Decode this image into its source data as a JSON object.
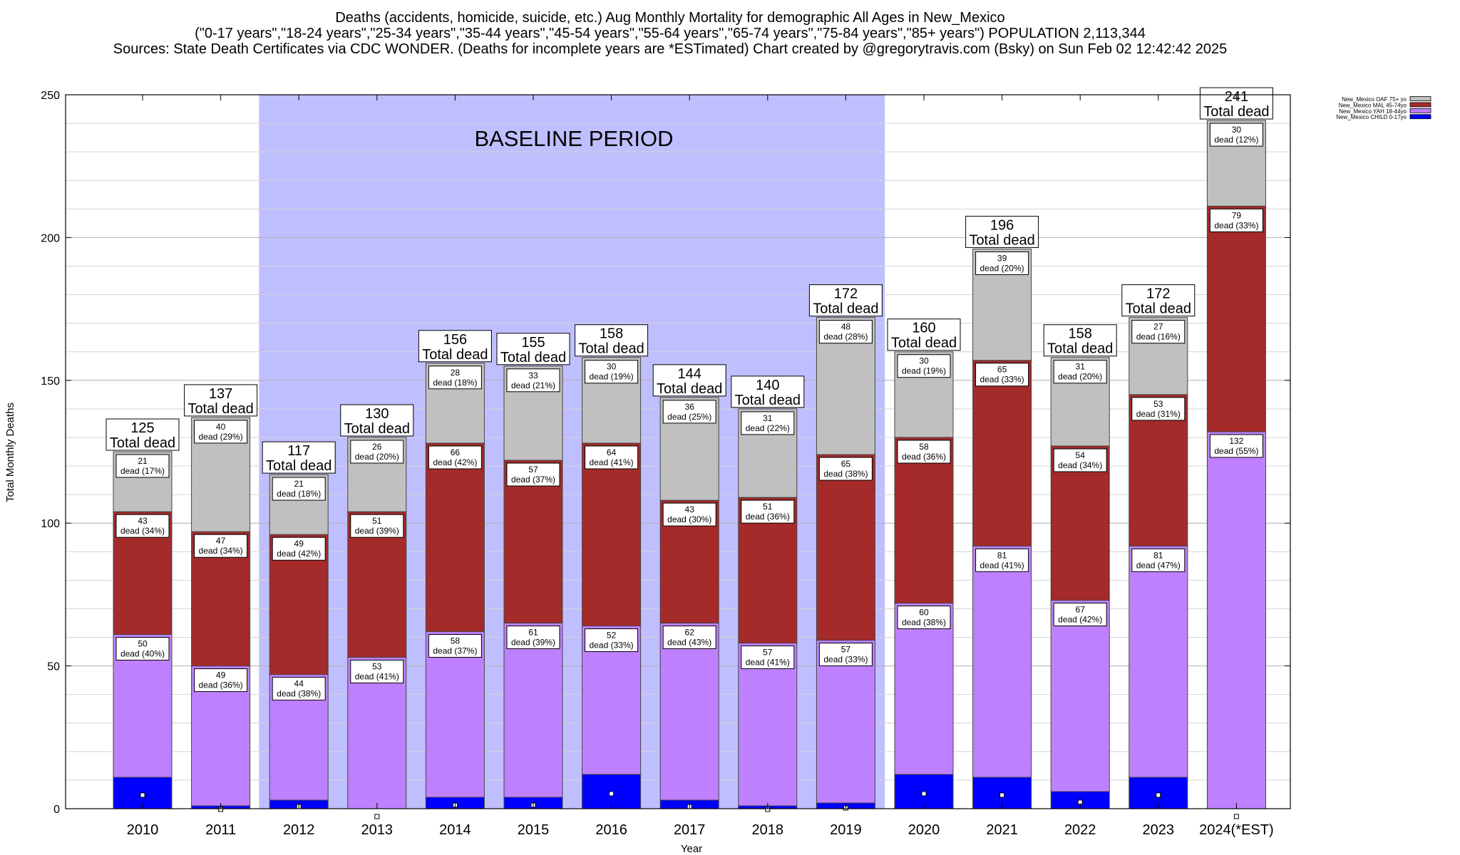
{
  "header": {
    "title_line1": "Deaths (accidents, homicide, suicide, etc.) Aug Monthly Mortality for demographic All Ages in New_Mexico",
    "title_line2": "(\"0-17 years\",\"18-24 years\",\"25-34 years\",\"35-44 years\",\"45-54 years\",\"55-64 years\",\"65-74 years\",\"75-84 years\",\"85+ years\") POPULATION 2,113,344",
    "title_line3": "Sources: State Death Certificates via CDC WONDER. (Deaths for incomplete years are *ESTimated)                Chart created by @gregorytravis.com (Bsky) on Sun Feb 02 12:42:42 2025"
  },
  "colors": {
    "child": "#0000ff",
    "yah": "#bf80ff",
    "mal": "#a52a2a",
    "oaf": "#c0c0c0",
    "baseline": "#bfbfff"
  },
  "chart_data": {
    "type": "bar",
    "stacked": true,
    "xlabel": "Year",
    "ylabel": "Total Monthly Deaths",
    "ylim": [
      0,
      250
    ],
    "y_ticks": [
      0,
      50,
      100,
      150,
      200,
      250
    ],
    "grid": true,
    "legend_position": "top-right",
    "baseline_label": "BASELINE PERIOD",
    "baseline_range": [
      "2012",
      "2019"
    ],
    "total_suffix": "Total dead",
    "segment_word": "dead",
    "categories": [
      "2010",
      "2011",
      "2012",
      "2013",
      "2014",
      "2015",
      "2016",
      "2017",
      "2018",
      "2019",
      "2020",
      "2021",
      "2022",
      "2023",
      "2024(*EST)"
    ],
    "series": [
      {
        "key": "child",
        "name": "New_Mexico CHILD 0-17yo",
        "values": [
          11,
          1,
          3,
          0,
          4,
          4,
          12,
          3,
          1,
          2,
          12,
          11,
          6,
          11,
          0
        ]
      },
      {
        "key": "yah",
        "name": "New_Mexico YAH 18-44yo",
        "values": [
          50,
          49,
          44,
          53,
          58,
          61,
          52,
          62,
          57,
          57,
          60,
          81,
          67,
          81,
          132
        ]
      },
      {
        "key": "mal",
        "name": "New_Mexico MAL 45-74yo",
        "values": [
          43,
          47,
          49,
          51,
          66,
          57,
          64,
          43,
          51,
          65,
          58,
          65,
          54,
          53,
          79
        ]
      },
      {
        "key": "oaf",
        "name": "New_Mexico OAF 75+ yo",
        "values": [
          21,
          40,
          21,
          26,
          28,
          33,
          30,
          36,
          31,
          48,
          30,
          39,
          31,
          27,
          30
        ]
      }
    ],
    "segment_percents": {
      "yah": [
        "40%",
        "36%",
        "38%",
        "41%",
        "37%",
        "39%",
        "33%",
        "43%",
        "41%",
        "33%",
        "38%",
        "41%",
        "42%",
        "47%",
        "55%"
      ],
      "mal": [
        "34%",
        "34%",
        "42%",
        "39%",
        "42%",
        "37%",
        "41%",
        "30%",
        "36%",
        "38%",
        "36%",
        "33%",
        "34%",
        "31%",
        "33%"
      ],
      "oaf": [
        "17%",
        "29%",
        "18%",
        "20%",
        "18%",
        "21%",
        "19%",
        "25%",
        "22%",
        "28%",
        "19%",
        "20%",
        "20%",
        "16%",
        "12%"
      ]
    },
    "totals": [
      125,
      137,
      117,
      130,
      156,
      155,
      158,
      144,
      140,
      172,
      160,
      196,
      158,
      172,
      241
    ]
  }
}
